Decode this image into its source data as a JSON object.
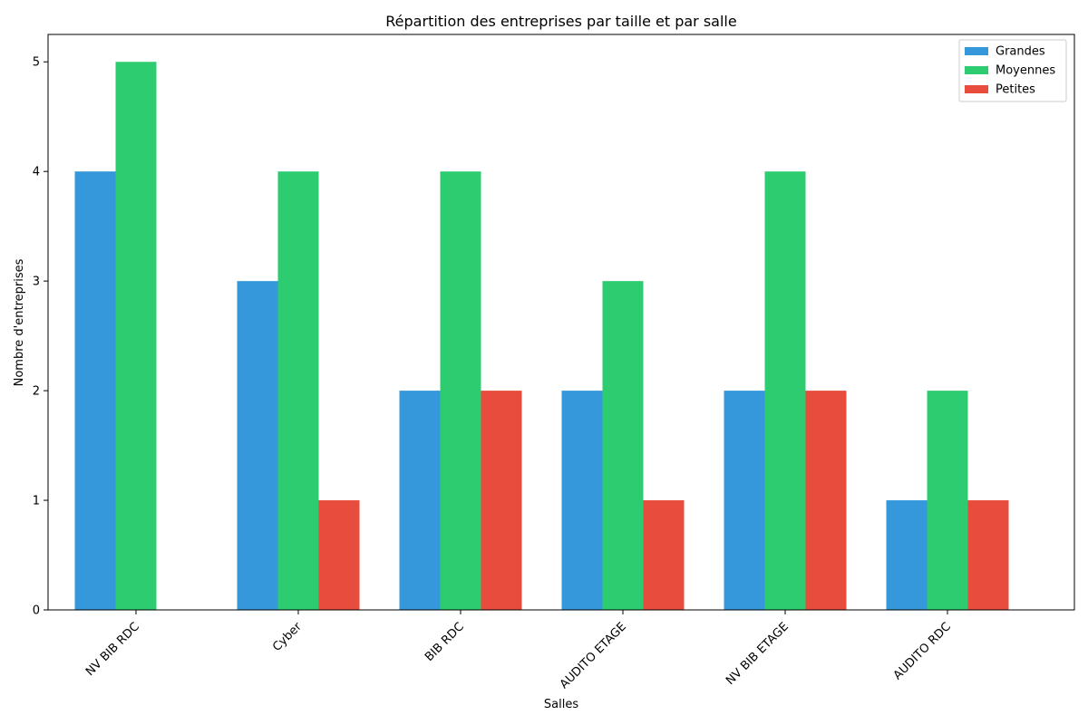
{
  "chart_data": {
    "type": "bar",
    "title": "Répartition des entreprises par taille et par salle",
    "xlabel": "Salles",
    "ylabel": "Nombre d'entreprises",
    "categories": [
      "NV BIB RDC",
      "Cyber",
      "BIB RDC",
      "AUDITO ETAGE",
      "NV BIB ETAGE",
      "AUDITO RDC"
    ],
    "series": [
      {
        "name": "Grandes",
        "color": "#3498db",
        "values": [
          4,
          3,
          2,
          2,
          2,
          1
        ]
      },
      {
        "name": "Moyennes",
        "color": "#2ecc71",
        "values": [
          5,
          4,
          4,
          3,
          4,
          2
        ]
      },
      {
        "name": "Petites",
        "color": "#e74c3c",
        "values": [
          0,
          1,
          2,
          1,
          2,
          1
        ]
      }
    ],
    "ylim": [
      0,
      5.25
    ],
    "yticks": [
      0,
      1,
      2,
      3,
      4,
      5
    ],
    "grid": false,
    "legend_position": "top-right"
  }
}
